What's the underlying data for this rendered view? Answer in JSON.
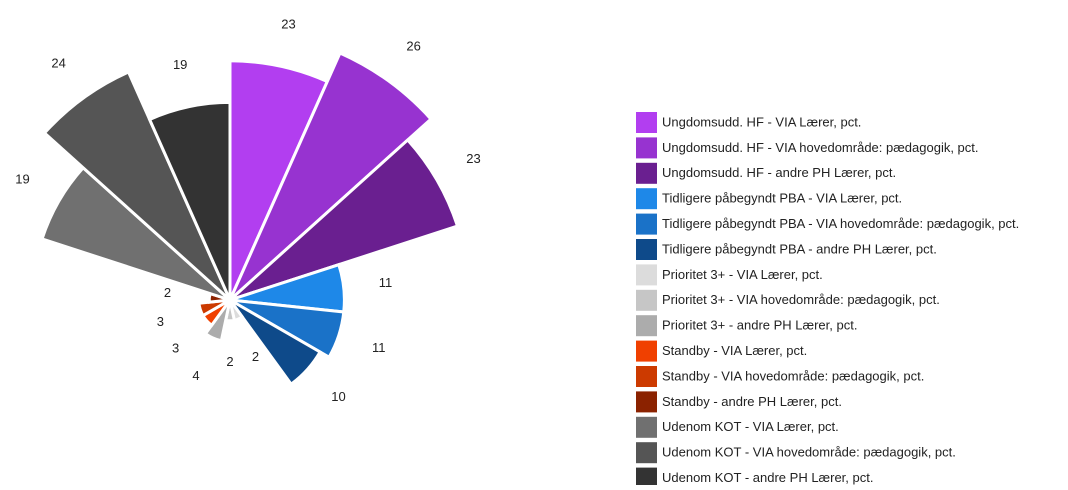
{
  "chart_data": {
    "type": "polar_area",
    "categories": [
      "Ungdomsudd. HF - VIA Lærer, pct.",
      "Ungdomsudd. HF - VIA hovedområde: pædagogik, pct.",
      "Ungdomsudd. HF - andre PH Lærer, pct.",
      "Tidligere påbegyndt PBA - VIA Lærer, pct.",
      "Tidligere påbegyndt PBA - VIA hovedområde: pædagogik, pct.",
      "Tidligere påbegyndt PBA - andre PH Lærer, pct.",
      "Prioritet 3+ - VIA Lærer, pct.",
      "Prioritet 3+ - VIA hovedområde: pædagogik, pct.",
      "Prioritet 3+ - andre PH Lærer, pct.",
      "Standby - VIA Lærer, pct.",
      "Standby - VIA hovedområde: pædagogik, pct.",
      "Standby - andre PH Lærer, pct.",
      "Udenom KOT - VIA Lærer, pct.",
      "Udenom KOT - VIA hovedområde: pædagogik, pct.",
      "Udenom KOT - andre PH Lærer, pct."
    ],
    "values": [
      23,
      26,
      23,
      11,
      11,
      10,
      2,
      2,
      4,
      3,
      3,
      2,
      19,
      24,
      19
    ],
    "colors": [
      "#b23ef0",
      "#9733d0",
      "#6a1f90",
      "#1e88e8",
      "#1a72c8",
      "#0e4a8a",
      "#dcdcdc",
      "#c6c6c6",
      "#acacac",
      "#f04000",
      "#cc3a00",
      "#8b2200",
      "#707070",
      "#555555",
      "#333333"
    ]
  }
}
